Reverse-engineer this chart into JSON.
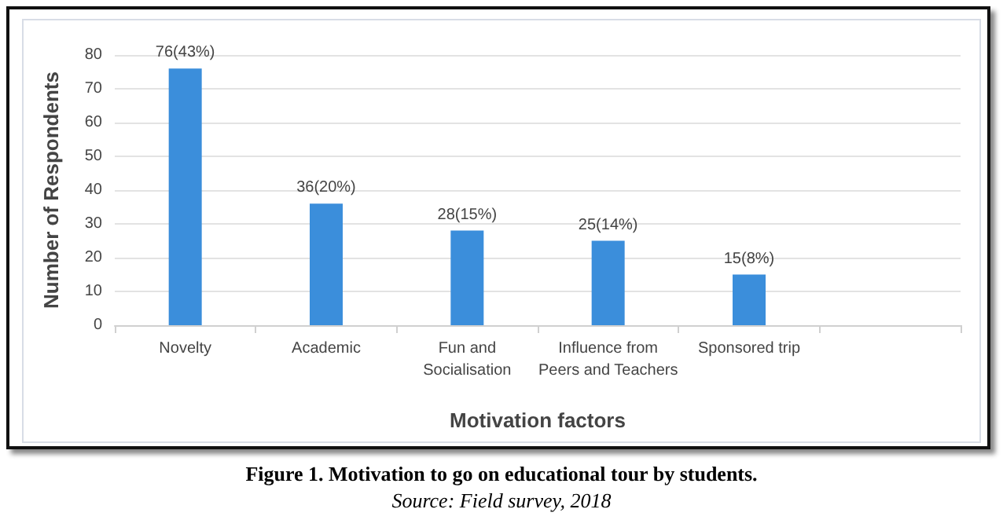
{
  "chart_data": {
    "type": "bar",
    "title": "Figure 1. Motivation to go on educational tour by students.",
    "annotations": [
      "Source: Field survey, 2018"
    ],
    "xlabel": "Motivation factors",
    "ylabel": "Number of Respondents",
    "categories": [
      "Novelty",
      "Academic",
      "Fun and\nSocialisation",
      "Influence from\nPeers and Teachers",
      "Sponsored trip",
      null
    ],
    "values": [
      76,
      36,
      28,
      25,
      15,
      null
    ],
    "value_labels": [
      "76(43%)",
      "36(20%)",
      "28(15%)",
      "25(14%)",
      "15(8%)",
      null
    ],
    "color": "#3b8edb",
    "ylim": [
      0,
      80
    ],
    "yticks": [
      0,
      10,
      20,
      30,
      40,
      50,
      60,
      70,
      80
    ],
    "grid": "y"
  }
}
